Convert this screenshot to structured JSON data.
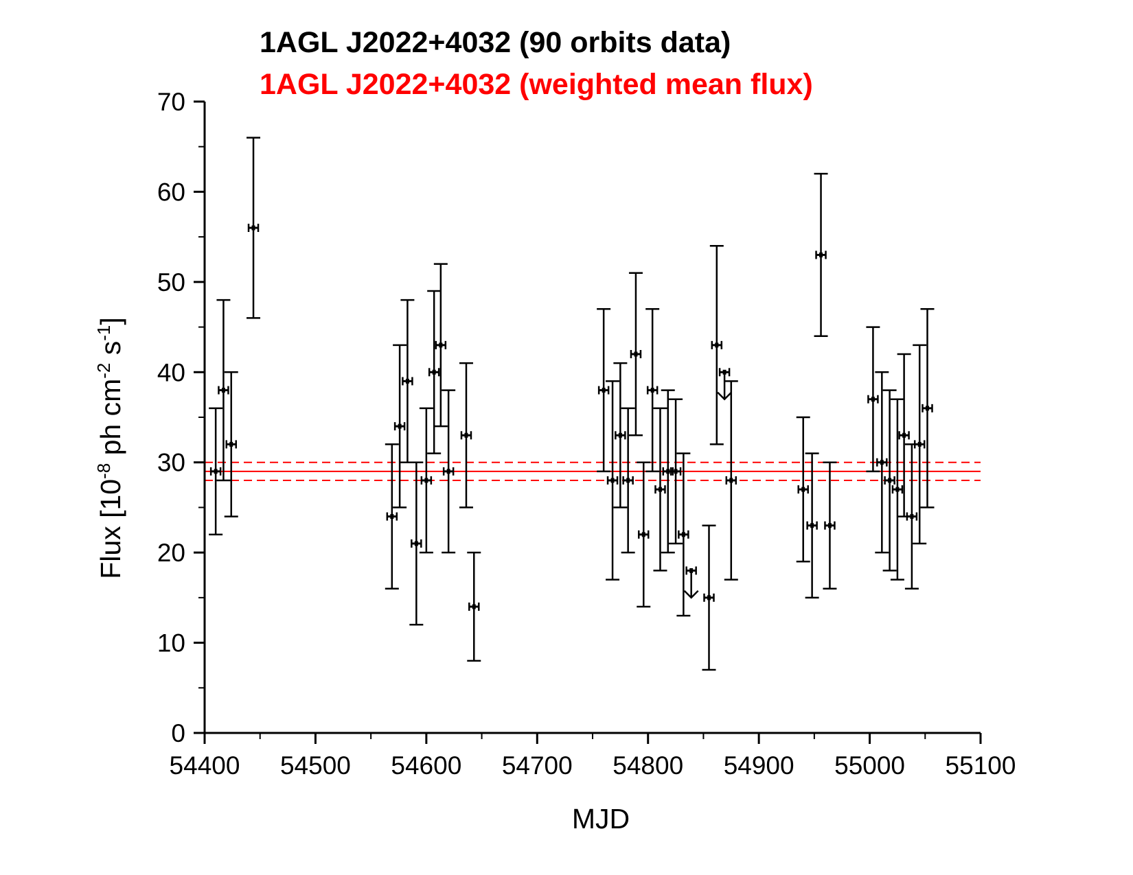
{
  "chart_data": {
    "type": "scatter",
    "title_lines": [
      {
        "text": "1AGL J2022+4032 (90 orbits data)",
        "color": "#000000"
      },
      {
        "text": "1AGL J2022+4032 (weighted mean flux)",
        "color": "#ff0000"
      }
    ],
    "xlabel": "MJD",
    "ylabel": {
      "parts": [
        {
          "text": "Flux [10",
          "sup": false
        },
        {
          "text": "-8",
          "sup": true
        },
        {
          "text": " ph cm",
          "sup": false
        },
        {
          "text": "-2",
          "sup": true
        },
        {
          "text": " s",
          "sup": false
        },
        {
          "text": "-1",
          "sup": true
        },
        {
          "text": "]",
          "sup": false
        }
      ]
    },
    "xlim": [
      54400,
      55100
    ],
    "ylim": [
      0,
      70
    ],
    "xticks": [
      54400,
      54500,
      54600,
      54700,
      54800,
      54900,
      55000,
      55100
    ],
    "yticks": [
      0,
      10,
      20,
      30,
      40,
      50,
      60,
      70
    ],
    "grid": false,
    "colors": {
      "data": "#000000",
      "mean": "#ff0000"
    },
    "mean_flux": {
      "value": 29.0,
      "lower": 28.0,
      "upper": 30.0
    },
    "series": [
      {
        "name": "90 orbits data",
        "points": [
          {
            "x": 54410,
            "y": 29,
            "ylo": 22,
            "yhi": 36
          },
          {
            "x": 54417,
            "y": 38,
            "ylo": 28,
            "yhi": 48
          },
          {
            "x": 54424,
            "y": 32,
            "ylo": 24,
            "yhi": 40
          },
          {
            "x": 54444,
            "y": 56,
            "ylo": 46,
            "yhi": 66
          },
          {
            "x": 54569,
            "y": 24,
            "ylo": 16,
            "yhi": 32
          },
          {
            "x": 54576,
            "y": 34,
            "ylo": 25,
            "yhi": 43
          },
          {
            "x": 54583,
            "y": 39,
            "ylo": 30,
            "yhi": 48
          },
          {
            "x": 54591,
            "y": 21,
            "ylo": 12,
            "yhi": 30
          },
          {
            "x": 54600,
            "y": 28,
            "ylo": 20,
            "yhi": 36
          },
          {
            "x": 54607,
            "y": 40,
            "ylo": 31,
            "yhi": 49
          },
          {
            "x": 54613,
            "y": 43,
            "ylo": 34,
            "yhi": 52
          },
          {
            "x": 54620,
            "y": 29,
            "ylo": 20,
            "yhi": 38
          },
          {
            "x": 54636,
            "y": 33,
            "ylo": 25,
            "yhi": 41
          },
          {
            "x": 54643,
            "y": 14,
            "ylo": 8,
            "yhi": 20
          },
          {
            "x": 54760,
            "y": 38,
            "ylo": 29,
            "yhi": 47
          },
          {
            "x": 54768,
            "y": 28,
            "ylo": 17,
            "yhi": 39
          },
          {
            "x": 54775,
            "y": 33,
            "ylo": 25,
            "yhi": 41
          },
          {
            "x": 54782,
            "y": 28,
            "ylo": 20,
            "yhi": 36
          },
          {
            "x": 54789,
            "y": 42,
            "ylo": 33,
            "yhi": 51
          },
          {
            "x": 54796,
            "y": 22,
            "ylo": 14,
            "yhi": 30
          },
          {
            "x": 54804,
            "y": 38,
            "ylo": 29,
            "yhi": 47
          },
          {
            "x": 54811,
            "y": 27,
            "ylo": 18,
            "yhi": 36
          },
          {
            "x": 54818,
            "y": 29,
            "ylo": 20,
            "yhi": 38
          },
          {
            "x": 54825,
            "y": 29,
            "ylo": 21,
            "yhi": 37
          },
          {
            "x": 54832,
            "y": 22,
            "ylo": 13,
            "yhi": 31
          },
          {
            "x": 54855,
            "y": 15,
            "ylo": 7,
            "yhi": 23
          },
          {
            "x": 54862,
            "y": 43,
            "ylo": 32,
            "yhi": 54
          },
          {
            "x": 54875,
            "y": 28,
            "ylo": 17,
            "yhi": 39
          },
          {
            "x": 54940,
            "y": 27,
            "ylo": 19,
            "yhi": 35
          },
          {
            "x": 54948,
            "y": 23,
            "ylo": 15,
            "yhi": 31
          },
          {
            "x": 54956,
            "y": 53,
            "ylo": 44,
            "yhi": 62
          },
          {
            "x": 54964,
            "y": 23,
            "ylo": 16,
            "yhi": 30
          },
          {
            "x": 55003,
            "y": 37,
            "ylo": 29,
            "yhi": 45
          },
          {
            "x": 55011,
            "y": 30,
            "ylo": 20,
            "yhi": 40
          },
          {
            "x": 55018,
            "y": 28,
            "ylo": 18,
            "yhi": 38
          },
          {
            "x": 55025,
            "y": 27,
            "ylo": 17,
            "yhi": 37
          },
          {
            "x": 55031,
            "y": 33,
            "ylo": 24,
            "yhi": 42
          },
          {
            "x": 55038,
            "y": 24,
            "ylo": 16,
            "yhi": 32
          },
          {
            "x": 55045,
            "y": 32,
            "ylo": 21,
            "yhi": 43
          },
          {
            "x": 55052,
            "y": 36,
            "ylo": 25,
            "yhi": 47
          }
        ]
      }
    ],
    "upper_limits": [
      {
        "x": 54839,
        "y": 18,
        "arrow_to": 15
      },
      {
        "x": 54869,
        "y": 40,
        "arrow_to": 37
      }
    ]
  }
}
